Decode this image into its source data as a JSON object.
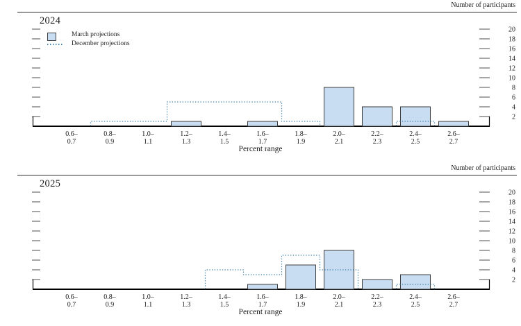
{
  "page": {
    "right_axis_title": "Number of participants",
    "x_axis_title": "Percent range"
  },
  "legend": {
    "items": [
      {
        "label": "March projections",
        "swatch": "bar"
      },
      {
        "label": "December projections",
        "swatch": "dotted-line"
      }
    ]
  },
  "colors": {
    "bar_fill": "#c9ddf2",
    "bar_stroke": "#3c3c3c",
    "dotted_line": "#4484ae",
    "axis": "#000000",
    "tick": "#6a6a6a",
    "text": "#1a1a1a"
  },
  "y_axis": {
    "ticks": [
      2,
      4,
      6,
      8,
      10,
      12,
      14,
      16,
      18,
      20
    ],
    "max": 21
  },
  "chart_data": [
    {
      "type": "bar",
      "title": "2024",
      "xlabel": "Percent range",
      "ylabel": "Number of participants",
      "ylim": [
        0,
        21
      ],
      "categories": [
        "0.6–0.7",
        "0.8–0.9",
        "1.0–1.1",
        "1.2–1.3",
        "1.4–1.5",
        "1.6–1.7",
        "1.8–1.9",
        "2.0–2.1",
        "2.2–2.3",
        "2.4–2.5",
        "2.6–2.7"
      ],
      "series": [
        {
          "name": "March projections",
          "style": "bars",
          "values": [
            0,
            0,
            0,
            1,
            0,
            1,
            0,
            8,
            4,
            4,
            1
          ]
        },
        {
          "name": "December projections",
          "style": "dotted-step",
          "values": [
            0,
            1,
            1,
            5,
            5,
            5,
            1,
            0,
            0,
            1,
            0
          ]
        }
      ]
    },
    {
      "type": "bar",
      "title": "2025",
      "xlabel": "Percent range",
      "ylabel": "Number of participants",
      "ylim": [
        0,
        21
      ],
      "categories": [
        "0.6–0.7",
        "0.8–0.9",
        "1.0–1.1",
        "1.2–1.3",
        "1.4–1.5",
        "1.6–1.7",
        "1.8–1.9",
        "2.0–2.1",
        "2.2–2.3",
        "2.4–2.5",
        "2.6–2.7"
      ],
      "series": [
        {
          "name": "March projections",
          "style": "bars",
          "values": [
            0,
            0,
            0,
            0,
            0,
            1,
            5,
            8,
            2,
            3,
            0
          ]
        },
        {
          "name": "December projections",
          "style": "dotted-step",
          "values": [
            0,
            0,
            0,
            0,
            4,
            3,
            7,
            4,
            0,
            1,
            0
          ]
        }
      ]
    }
  ]
}
